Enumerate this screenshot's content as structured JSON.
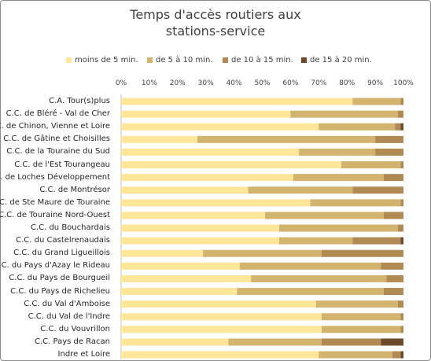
{
  "chart_data": {
    "type": "bar",
    "orientation": "horizontal",
    "stacked": "percent",
    "title": "Temps d'accès routiers aux\nstations-service",
    "xlabel": "",
    "ylabel": "",
    "xlim": [
      0,
      100
    ],
    "x_ticks": [
      "0%",
      "10%",
      "20%",
      "30%",
      "40%",
      "50%",
      "60%",
      "70%",
      "80%",
      "90%",
      "100%"
    ],
    "legend_position": "top",
    "grid": false,
    "categories": [
      "C.A. Tour(s)plus",
      "C.C. de Bléré - Val de Cher",
      "C.C. de Chinon, Vienne et Loire",
      "C.C. de Gâtine et Choisilles",
      "C.C. de la Touraine du Sud",
      "C.C. de l'Est Tourangeau",
      "C.C. de Loches Développement",
      "C.C. de Montrésor",
      "C.C. de Ste Maure de Touraine",
      "C.C. de Touraine Nord-Ouest",
      "C.C. du Bouchardais",
      "C.C. du Castelrenaudais",
      "C.C. du Grand Ligueillois",
      "C.C. du Pays d'Azay le Rideau",
      "C.C. du Pays de Bourgueil",
      "C.C. du Pays de Richelieu",
      "C.C. du Val d'Amboise",
      "C.C. du Val de l'Indre",
      "C.C. du Vouvrillon",
      "C.C. Pays de Racan",
      "Indre et Loire"
    ],
    "series": [
      {
        "name": "moins de 5 min.",
        "color": "#FFE699",
        "values": [
          82,
          60,
          70,
          27,
          63,
          78,
          61,
          45,
          67,
          51,
          56,
          56,
          29,
          42,
          46,
          41,
          69,
          71,
          71,
          38,
          70
        ]
      },
      {
        "name": "de 5 à 10 min.",
        "color": "#D2B46E",
        "values": [
          17,
          38,
          27,
          63,
          27,
          21,
          32,
          37,
          32,
          42,
          42,
          26,
          42,
          50,
          48,
          52,
          29,
          28,
          28,
          33,
          26
        ]
      },
      {
        "name": "de 10 à 15 min.",
        "color": "#B08A52",
        "values": [
          1,
          2,
          2,
          10,
          10,
          1,
          7,
          18,
          1,
          7,
          2,
          17,
          29,
          8,
          6,
          7,
          2,
          1,
          1,
          21,
          3
        ]
      },
      {
        "name": "de 15 à 20 min.",
        "color": "#6B4A2B",
        "values": [
          0,
          0,
          1,
          0,
          0,
          0,
          0,
          0,
          0,
          0,
          0,
          1,
          0,
          0,
          0,
          0,
          0,
          0,
          0,
          8,
          1
        ]
      }
    ]
  }
}
